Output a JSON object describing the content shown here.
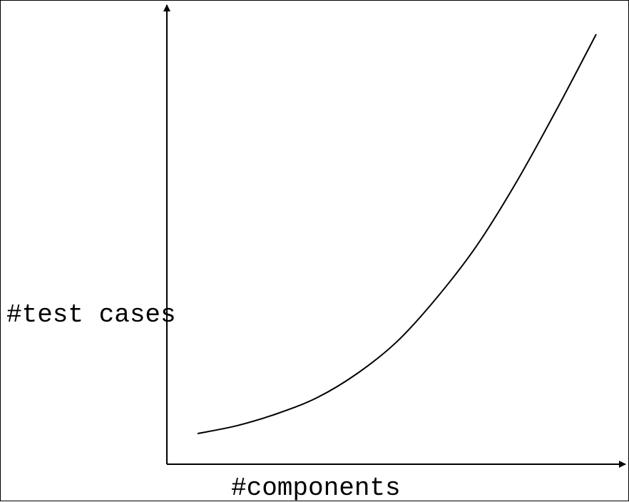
{
  "chart_data": {
    "type": "line",
    "title": "",
    "xlabel": "#components",
    "ylabel": "#test cases",
    "xticks": [],
    "yticks": [],
    "grid": false,
    "legend": "none",
    "series": [
      {
        "values_shape": "exponential growth",
        "x": [
          0,
          0.1,
          0.2,
          0.3,
          0.4,
          0.5,
          0.6,
          0.7,
          0.8,
          0.9,
          1.0
        ],
        "y": [
          0.0,
          0.02,
          0.05,
          0.09,
          0.15,
          0.23,
          0.34,
          0.47,
          0.63,
          0.81,
          1.0
        ]
      }
    ],
    "colors": {
      "line": "#000000",
      "axes": "#000000",
      "background": "#ffffff"
    }
  }
}
